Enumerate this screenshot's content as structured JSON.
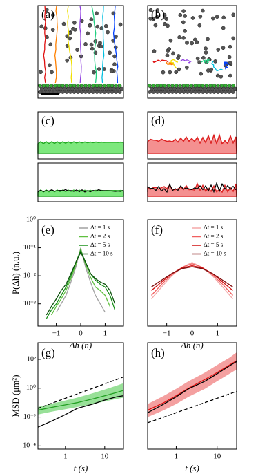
{
  "image_panels": [
    {
      "label": "(a)"
    },
    {
      "label": "(b)"
    },
    {
      "label": "(c)"
    },
    {
      "label": "(d)"
    }
  ],
  "chart_data": [
    {
      "type": "line",
      "label": "(e)",
      "ylabel": "P(Δh) (n.u.)",
      "xlabel": "Δh (n)",
      "yscale": "log",
      "legend": "upper right",
      "xlim": [
        -1.75,
        1.75
      ],
      "xticks": [
        {
          "value": -1,
          "label": "−1"
        },
        0,
        1
      ],
      "ylim": [
        0.00016,
        1
      ],
      "yticks": [
        {
          "value": 0.001,
          "label": "10⁻³"
        },
        {
          "value": 0.01,
          "label": "10⁻²"
        },
        {
          "value": 0.1,
          "label": "10⁻¹"
        },
        {
          "value": 1,
          "label": "10⁰"
        }
      ],
      "x": [
        -1.4,
        -1.2,
        -1.0,
        -0.8,
        -0.6,
        -0.4,
        -0.2,
        0,
        0.2,
        0.4,
        0.6,
        0.8,
        1.0,
        1.2,
        1.4
      ],
      "series": [
        {
          "name": "Δt = 1 s",
          "color": "#a0a0a0",
          "values": [
            null,
            null,
            0.0005,
            0.001,
            0.002,
            0.006,
            0.02,
            0.1,
            0.02,
            0.006,
            0.002,
            0.001,
            0.0005,
            null,
            null
          ]
        },
        {
          "name": "Δt = 2 s",
          "color": "#60c040",
          "values": [
            null,
            0.0004,
            0.0008,
            0.0015,
            0.003,
            0.008,
            0.025,
            0.09,
            0.025,
            0.009,
            0.004,
            0.003,
            0.002,
            0.0008,
            null
          ]
        },
        {
          "name": "Δt = 5 s",
          "color": "#1a901a",
          "values": [
            0.0003,
            0.0006,
            0.001,
            0.002,
            0.004,
            0.01,
            0.03,
            0.08,
            0.03,
            0.012,
            0.007,
            0.005,
            0.004,
            0.002,
            0.0006
          ]
        },
        {
          "name": "Δt = 10 s",
          "color": "#0a500a",
          "values": [
            0.0004,
            0.0008,
            0.0015,
            0.003,
            0.005,
            0.012,
            0.03,
            0.07,
            0.03,
            0.012,
            0.008,
            0.006,
            0.005,
            0.003,
            0.001
          ]
        }
      ]
    },
    {
      "type": "line",
      "label": "(f)",
      "xlabel": "Δh (n)",
      "yscale": "log",
      "legend": "upper right",
      "xlim": [
        -1.75,
        1.75
      ],
      "xticks": [
        {
          "value": -1,
          "label": "−1"
        },
        0,
        1
      ],
      "ylim": [
        0.00016,
        1
      ],
      "x": [
        -1.6,
        -1.2,
        -0.8,
        -0.4,
        0,
        0.4,
        0.8,
        1.2,
        1.6
      ],
      "series": [
        {
          "name": "Δt = 1 s",
          "color": "#f4a8a8",
          "values": [
            0.0015,
            0.004,
            0.01,
            0.02,
            0.03,
            0.02,
            0.01,
            0.004,
            0.0015
          ]
        },
        {
          "name": "Δt = 2 s",
          "color": "#f06060",
          "values": [
            0.002,
            0.005,
            0.011,
            0.02,
            0.027,
            0.02,
            0.011,
            0.005,
            0.002
          ]
        },
        {
          "name": "Δt = 5 s",
          "color": "#d01010",
          "values": [
            0.003,
            0.006,
            0.012,
            0.019,
            0.023,
            0.019,
            0.012,
            0.006,
            0.003
          ]
        },
        {
          "name": "Δt = 10 s",
          "color": "#801010",
          "values": [
            0.004,
            0.007,
            0.012,
            0.018,
            0.021,
            0.018,
            0.012,
            0.007,
            0.004
          ]
        }
      ]
    },
    {
      "type": "line",
      "label": "(g)",
      "ylabel": "MSD (μm²)",
      "xlabel": "t (s)",
      "xscale": "log",
      "yscale": "log",
      "xlim": [
        0.2,
        30
      ],
      "xticks": [
        1,
        10
      ],
      "ylim": [
        6e-05,
        1400
      ],
      "yticks": [
        {
          "value": 0.0001,
          "label": "10⁻⁴"
        },
        {
          "value": 0.01,
          "label": "10⁻²"
        },
        {
          "value": 1,
          "label": "10⁰"
        },
        {
          "value": 100,
          "label": "10²"
        }
      ],
      "x": [
        0.2,
        0.5,
        1,
        2,
        5,
        10,
        20,
        30
      ],
      "series": [
        {
          "color": "#22a022",
          "values": [
            0.03,
            0.05,
            0.07,
            0.1,
            0.18,
            0.3,
            0.5,
            0.7
          ],
          "band": {
            "color": "#98e098",
            "lower": [
              0.015,
              0.025,
              0.035,
              0.05,
              0.08,
              0.12,
              0.18,
              0.22
            ],
            "upper": [
              0.05,
              0.09,
              0.14,
              0.22,
              0.45,
              0.8,
              1.5,
              2.2
            ]
          }
        },
        {
          "color": "#000000",
          "values": [
            0.002,
            0.006,
            0.015,
            0.04,
            0.08,
            0.15,
            0.25,
            0.3
          ]
        },
        {
          "color": "#000000",
          "dash": true,
          "values": [
            0.04,
            0.1,
            0.2,
            0.4,
            1,
            2,
            4,
            6
          ]
        }
      ]
    },
    {
      "type": "line",
      "label": "(h)",
      "xlabel": "t (s)",
      "xscale": "log",
      "yscale": "log",
      "xlim": [
        0.2,
        30
      ],
      "xticks": [
        1,
        10
      ],
      "ylim": [
        6e-05,
        1400
      ],
      "x": [
        0.2,
        0.5,
        1,
        2,
        5,
        10,
        20,
        30
      ],
      "series": [
        {
          "color": "#e01010",
          "values": [
            0.03,
            0.1,
            0.3,
            1,
            4,
            12,
            40,
            80
          ],
          "band": {
            "color": "#f4a0a0",
            "lower": [
              0.01,
              0.03,
              0.08,
              0.25,
              0.9,
              3,
              10,
              20
            ],
            "upper": [
              0.08,
              0.3,
              0.9,
              3,
              12,
              40,
              130,
              300
            ]
          }
        },
        {
          "color": "#000000",
          "values": [
            0.02,
            0.08,
            0.25,
            0.9,
            3,
            10,
            35,
            70
          ]
        },
        {
          "color": "#000000",
          "dash": true,
          "values": [
            0.004,
            0.01,
            0.02,
            0.04,
            0.1,
            0.2,
            0.4,
            0.6
          ]
        }
      ]
    }
  ]
}
